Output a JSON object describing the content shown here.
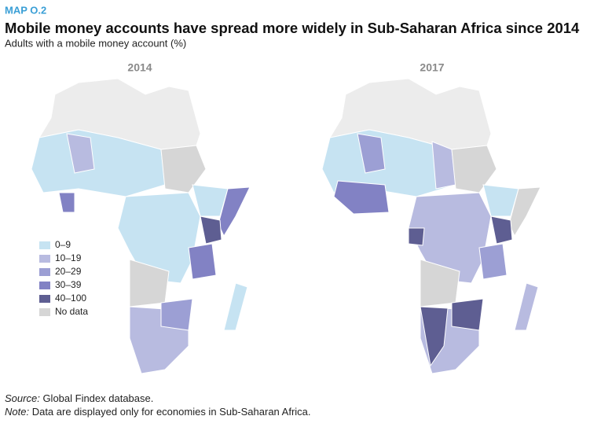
{
  "header": {
    "label": "MAP O.2",
    "title": "Mobile money accounts have spread more widely in Sub-Saharan Africa since 2014",
    "subtitle": "Adults with a mobile money account (%)"
  },
  "maps": [
    {
      "title": "2014"
    },
    {
      "title": "2017"
    }
  ],
  "legend": [
    {
      "label": "0–9",
      "color": "#c6e3f2"
    },
    {
      "label": "10–19",
      "color": "#b8bbe0"
    },
    {
      "label": "20–29",
      "color": "#9c9fd4"
    },
    {
      "label": "30–39",
      "color": "#8282c4"
    },
    {
      "label": "40–100",
      "color": "#5e5e92"
    },
    {
      "label": "No data",
      "color": "#d6d6d6"
    }
  ],
  "footer": {
    "source_label": "Source:",
    "source": "Global Findex database.",
    "note_label": "Note:",
    "note": "Data are displayed only for economies in Sub-Saharan Africa."
  }
}
